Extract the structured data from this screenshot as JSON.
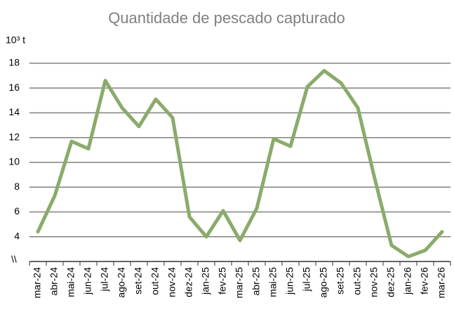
{
  "chart_data": {
    "type": "line",
    "title": "Quantidade de pescado capturado",
    "y_label": "10³ t",
    "axis_break": "\\\\",
    "categories": [
      "mar-24",
      "abr-24",
      "mai-24",
      "jun-24",
      "jul-24",
      "ago-24",
      "set-24",
      "out-24",
      "nov-24",
      "dez-24",
      "jan-25",
      "fev-25",
      "mar-25",
      "abr-25",
      "mai-25",
      "jun-25",
      "jul-25",
      "ago-25",
      "set-25",
      "out-25",
      "nov-25",
      "dez-25",
      "jan-26",
      "fev-26",
      "mar-26"
    ],
    "values": [
      4.4,
      7.3,
      11.7,
      11.1,
      16.6,
      14.4,
      12.9,
      15.1,
      13.6,
      5.6,
      4.0,
      6.1,
      3.7,
      6.3,
      11.9,
      11.3,
      16.1,
      17.4,
      16.4,
      14.4,
      8.7,
      3.3,
      2.4,
      2.9,
      4.4
    ],
    "color": "#8aab6b",
    "ylim": [
      2,
      18
    ],
    "yticks": [
      4,
      6,
      8,
      10,
      12,
      14,
      16,
      18
    ],
    "grid": true
  }
}
